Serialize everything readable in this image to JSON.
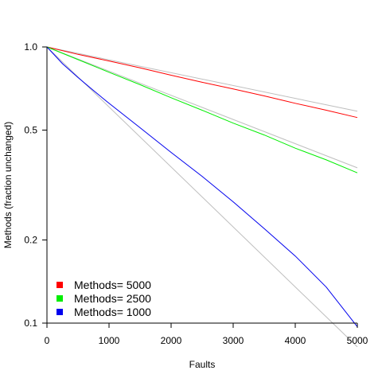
{
  "chart_data": {
    "type": "line",
    "title": "",
    "xlabel": "Faults",
    "ylabel": "Methods (fraction unchanged)",
    "x_range": [
      0,
      5000
    ],
    "y_range": [
      0.1,
      1.0
    ],
    "y_scale": "log",
    "x_ticks": [
      0,
      1000,
      2000,
      3000,
      4000,
      5000
    ],
    "x_tick_labels": [
      "0",
      "1000",
      "2000",
      "3000",
      "4000",
      "5000"
    ],
    "y_ticks": [
      0.1,
      0.2,
      0.5,
      1.0
    ],
    "y_tick_labels": [
      "0.1",
      "0.2",
      "0.5",
      "1.0"
    ],
    "grid": false,
    "legend_position": "bottom-left",
    "series": [
      {
        "name": "Methods= 5000",
        "color": "#ff0000",
        "x": [
          0,
          500,
          1000,
          1500,
          2000,
          2500,
          3000,
          3500,
          4000,
          4500,
          5000
        ],
        "y": [
          1.0,
          0.94,
          0.89,
          0.84,
          0.79,
          0.745,
          0.705,
          0.665,
          0.625,
          0.59,
          0.555
        ]
      },
      {
        "name": "Methods= 2500",
        "color": "#00ee00",
        "x": [
          0,
          500,
          1000,
          1500,
          2000,
          2500,
          3000,
          3500,
          4000,
          4500,
          5000
        ],
        "y": [
          1.0,
          0.9,
          0.81,
          0.73,
          0.655,
          0.59,
          0.53,
          0.48,
          0.43,
          0.39,
          0.35
        ]
      },
      {
        "name": "Methods= 1000",
        "color": "#0000ee",
        "x": [
          0,
          250,
          500,
          750,
          1000,
          1500,
          2000,
          2500,
          3000,
          3500,
          4000,
          4500,
          5000
        ],
        "y": [
          1.0,
          0.87,
          0.775,
          0.695,
          0.625,
          0.51,
          0.415,
          0.34,
          0.275,
          0.22,
          0.175,
          0.135,
          0.097
        ]
      },
      {
        "name": "",
        "color": "#bebebe",
        "x": [
          0,
          5000
        ],
        "y": [
          1.0,
          0.585
        ]
      },
      {
        "name": "",
        "color": "#bebebe",
        "x": [
          0,
          5000
        ],
        "y": [
          1.0,
          0.365
        ]
      },
      {
        "name": "",
        "color": "#bebebe",
        "x": [
          0,
          5000
        ],
        "y": [
          1.0,
          0.082
        ]
      }
    ]
  }
}
